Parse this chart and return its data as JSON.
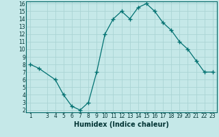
{
  "xlabel": "Humidex (Indice chaleur)",
  "ylabel": "",
  "x": [
    1,
    2,
    4,
    5,
    6,
    7,
    8,
    9,
    10,
    11,
    12,
    13,
    14,
    15,
    16,
    17,
    18,
    19,
    20,
    21,
    22,
    23
  ],
  "y": [
    8,
    7.5,
    6,
    4,
    2.5,
    2,
    3,
    7,
    12,
    14,
    15,
    14,
    15.5,
    16,
    15,
    13.5,
    12.5,
    11,
    10,
    8.5,
    7,
    7
  ],
  "line_color": "#007070",
  "marker": "+",
  "marker_size": 4,
  "marker_color": "#007070",
  "background_color": "#c5e8e8",
  "grid_color": "#aad4d4",
  "xlim": [
    1,
    23
  ],
  "ylim": [
    2,
    16
  ],
  "xtick_positions": [
    1,
    3,
    4,
    5,
    6,
    7,
    8,
    9,
    10,
    11,
    12,
    13,
    14,
    15,
    16,
    17,
    18,
    19,
    20,
    21,
    22,
    23
  ],
  "xtick_labels": [
    "1",
    "3",
    "4",
    "5",
    "6",
    "7",
    "8",
    "9",
    "10",
    "11",
    "12",
    "13",
    "14",
    "15",
    "16",
    "17",
    "18",
    "19",
    "20",
    "21",
    "22",
    "23"
  ],
  "ytick_positions": [
    2,
    3,
    4,
    5,
    6,
    7,
    8,
    9,
    10,
    11,
    12,
    13,
    14,
    15,
    16
  ],
  "ytick_labels": [
    "2",
    "3",
    "4",
    "5",
    "6",
    "7",
    "8",
    "9",
    "10",
    "11",
    "12",
    "13",
    "14",
    "15",
    "16"
  ],
  "tick_fontsize": 5.5,
  "xlabel_fontsize": 7,
  "xlabel_bold": true
}
